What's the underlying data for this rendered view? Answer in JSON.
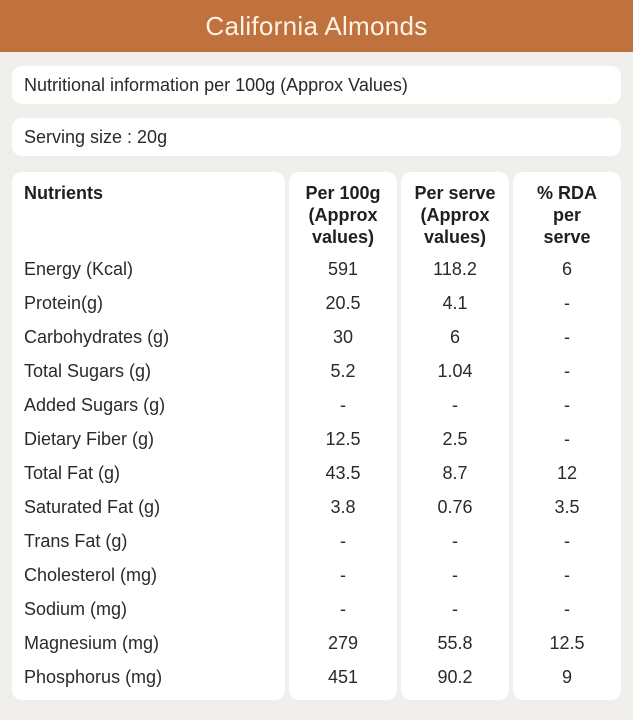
{
  "colors": {
    "accent": "#c1713e",
    "header_text": "#fcf4e4",
    "page_bg": "#f0efec",
    "card_bg": "#ffffff",
    "body_text": "#2a2a2a"
  },
  "header": {
    "title": "California Almonds"
  },
  "info_bars": {
    "nutrition_info": "Nutritional information per 100g (Approx Values)",
    "serving_size": "Serving size : 20g"
  },
  "table": {
    "columns": {
      "nutrient": "Nutrients",
      "per_100g": "Per 100g\n(Approx\nvalues)",
      "per_serve": "Per serve\n(Approx\nvalues)",
      "rda": "% RDA\nper\nserve"
    },
    "rows": [
      {
        "nutrient": "Energy (Kcal)",
        "per_100g": "591",
        "per_serve": "118.2",
        "rda": "6"
      },
      {
        "nutrient": "Protein(g)",
        "per_100g": "20.5",
        "per_serve": "4.1",
        "rda": "-"
      },
      {
        "nutrient": "Carbohydrates (g)",
        "per_100g": "30",
        "per_serve": "6",
        "rda": "-"
      },
      {
        "nutrient": "Total Sugars (g)",
        "per_100g": "5.2",
        "per_serve": "1.04",
        "rda": "-"
      },
      {
        "nutrient": "Added Sugars (g)",
        "per_100g": "-",
        "per_serve": "-",
        "rda": "-"
      },
      {
        "nutrient": "Dietary Fiber (g)",
        "per_100g": "12.5",
        "per_serve": "2.5",
        "rda": "-"
      },
      {
        "nutrient": "Total Fat (g)",
        "per_100g": "43.5",
        "per_serve": "8.7",
        "rda": "12"
      },
      {
        "nutrient": "Saturated Fat (g)",
        "per_100g": "3.8",
        "per_serve": "0.76",
        "rda": "3.5"
      },
      {
        "nutrient": "Trans Fat (g)",
        "per_100g": "-",
        "per_serve": "-",
        "rda": "-"
      },
      {
        "nutrient": "Cholesterol (mg)",
        "per_100g": "-",
        "per_serve": "-",
        "rda": "-"
      },
      {
        "nutrient": "Sodium (mg)",
        "per_100g": "-",
        "per_serve": "-",
        "rda": "-"
      },
      {
        "nutrient": "Magnesium (mg)",
        "per_100g": "279",
        "per_serve": "55.8",
        "rda": "12.5"
      },
      {
        "nutrient": "Phosphorus (mg)",
        "per_100g": "451",
        "per_serve": "90.2",
        "rda": "9"
      }
    ]
  }
}
